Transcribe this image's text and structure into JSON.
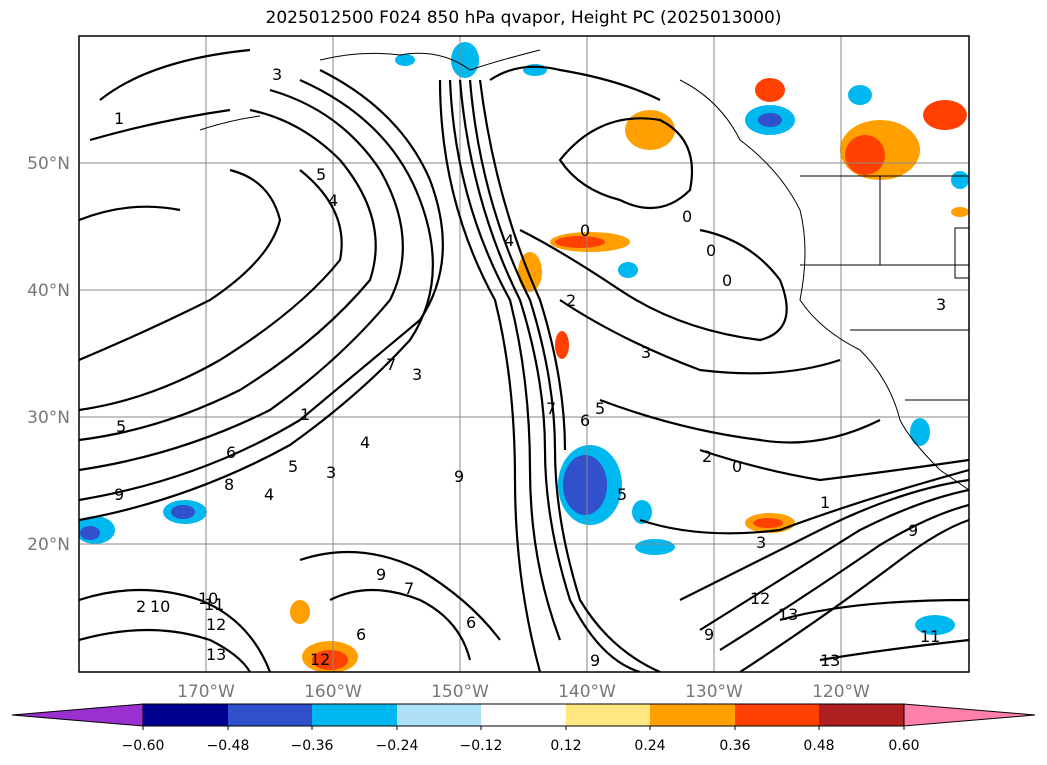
{
  "title": "2025012500 F024 850 hPa qvapor, Height PC (2025013000)",
  "map": {
    "lat_labels": [
      "50°N",
      "40°N",
      "30°N",
      "20°N"
    ],
    "lon_labels": [
      "170°W",
      "160°W",
      "150°W",
      "140°W",
      "130°W",
      "120°W"
    ]
  },
  "contour_labels": [
    "3",
    "5",
    "4",
    "5",
    "1",
    "3",
    "6",
    "8",
    "4",
    "5",
    "4",
    "3",
    "7",
    "9",
    "9",
    "7",
    "9",
    "6",
    "2",
    "4",
    "7",
    "0",
    "0",
    "5",
    "6",
    "5",
    "2",
    "0",
    "1",
    "3",
    "0",
    "0",
    "3",
    "2",
    "10",
    "11",
    "12",
    "13",
    "12",
    "10",
    "13",
    "12",
    "13",
    "9",
    "9",
    "11",
    "3",
    "6",
    "9",
    "1"
  ],
  "colorbar": {
    "ticks": [
      "−0.60",
      "−0.48",
      "−0.36",
      "−0.24",
      "−0.12",
      "0.12",
      "0.24",
      "0.36",
      "0.48",
      "0.60"
    ],
    "colors": {
      "under": "#9b30d0",
      "bins": [
        "#000090",
        "#3050cc",
        "#00b8f0",
        "#aee0f8",
        "#ffffff",
        "#ffe680",
        "#ffa000",
        "#ff4000",
        "#b02020"
      ],
      "over": "#ff80a8"
    }
  }
}
